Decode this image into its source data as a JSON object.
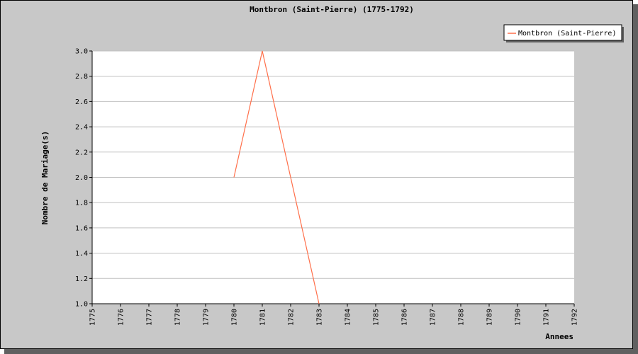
{
  "chart_data": {
    "type": "line",
    "title": "Montbron (Saint-Pierre) (1775-1792)",
    "xlabel": "Annees",
    "ylabel": "Nombre de Mariage(s)",
    "xlim": [
      1775,
      1792
    ],
    "ylim": [
      1.0,
      3.0
    ],
    "x_ticks": [
      "1775",
      "1776",
      "1777",
      "1778",
      "1779",
      "1780",
      "1781",
      "1782",
      "1783",
      "1784",
      "1785",
      "1786",
      "1787",
      "1788",
      "1789",
      "1790",
      "1791",
      "1792"
    ],
    "y_ticks": [
      "1.0",
      "1.2",
      "1.4",
      "1.6",
      "1.8",
      "2.0",
      "2.2",
      "2.4",
      "2.6",
      "2.8",
      "3.0"
    ],
    "grid": true,
    "legend_position": "top-right",
    "series": [
      {
        "name": "Montbron (Saint-Pierre)",
        "color": "#ff6f4a",
        "x": [
          1780,
          1781,
          1782,
          1783
        ],
        "y": [
          2,
          3,
          2,
          1
        ]
      }
    ]
  }
}
